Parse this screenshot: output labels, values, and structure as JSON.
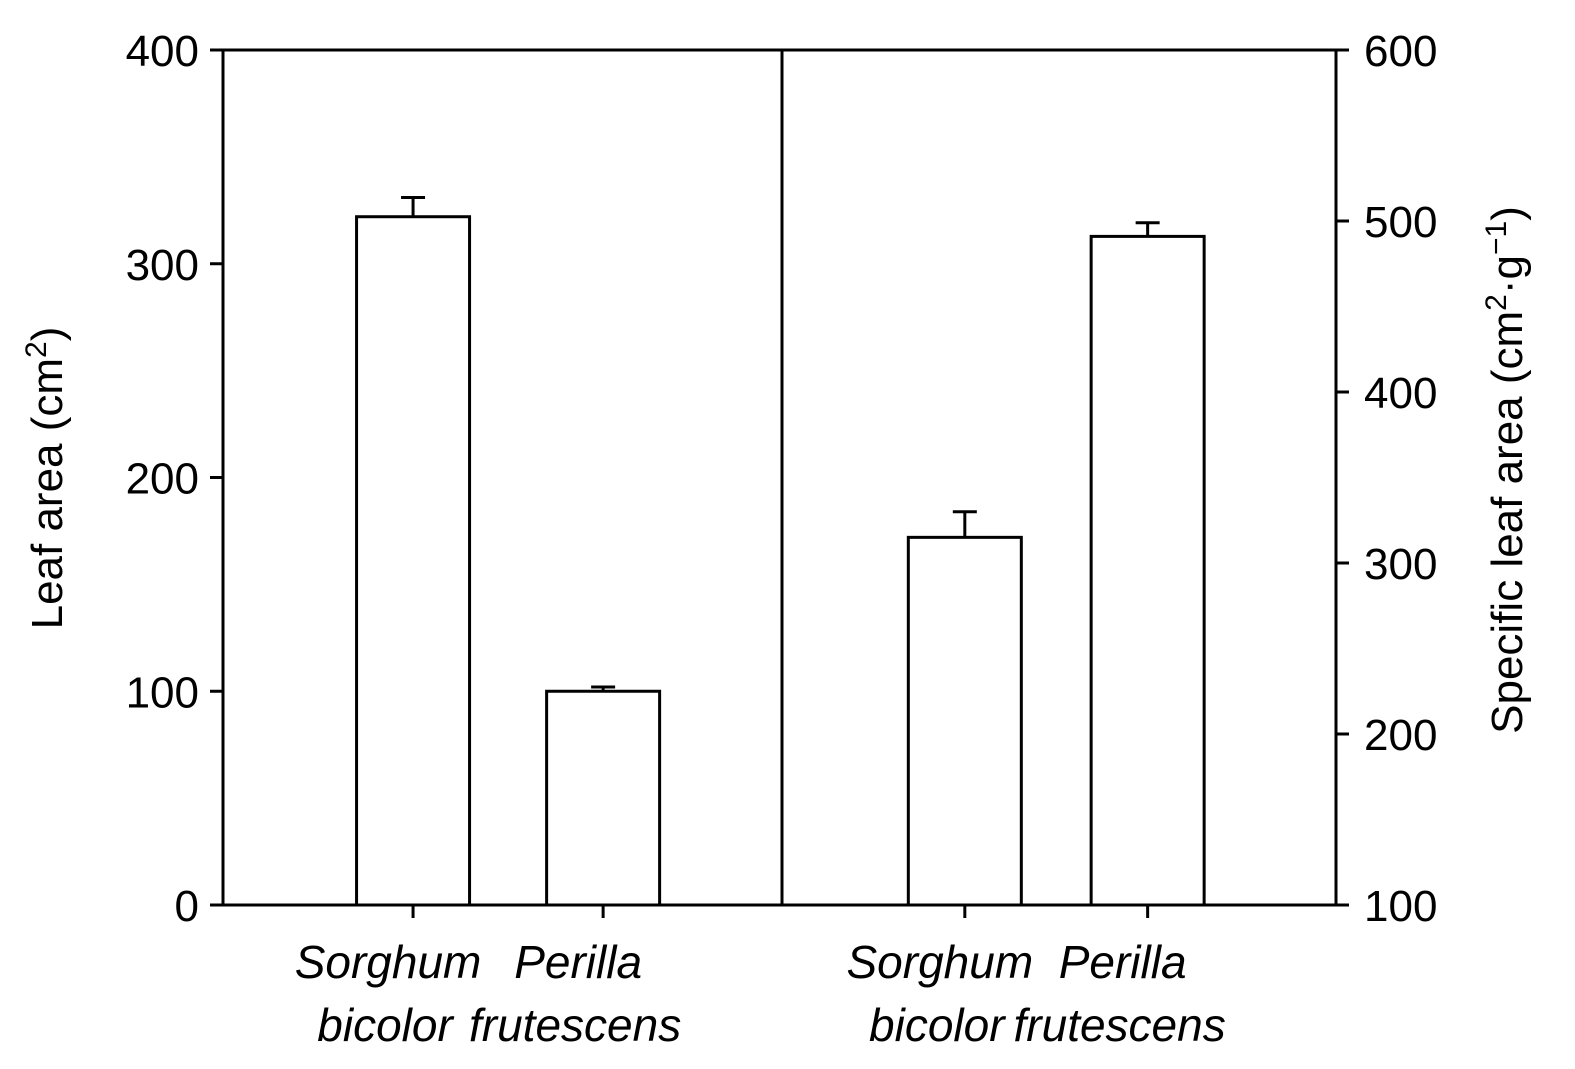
{
  "chart_data": {
    "type": "bar",
    "title": "",
    "left_axis": {
      "label_main": "Leaf area (cm",
      "label_sup": "2",
      "label_end": ")",
      "ylim": [
        0,
        400
      ],
      "ticks": [
        "0",
        "100",
        "200",
        "300",
        "400"
      ]
    },
    "right_axis": {
      "label_main": "Specific leaf area (cm",
      "label_sup1": "2",
      "label_mid": "·g",
      "label_sup2": "−1",
      "label_end": ")",
      "ylim": [
        100,
        600
      ],
      "ticks": [
        "100",
        "200",
        "300",
        "400",
        "500",
        "600"
      ]
    },
    "panels": [
      {
        "axis": "left",
        "categories": [
          {
            "line1": "Sorghum",
            "line2": "bicolor"
          },
          {
            "line1": "Perilla",
            "line2": "frutescens"
          }
        ],
        "values": [
          322,
          100
        ],
        "errors": [
          9,
          2
        ]
      },
      {
        "axis": "right",
        "categories": [
          {
            "line1": "Sorghum",
            "line2": "bicolor"
          },
          {
            "line1": "Perilla",
            "line2": "frutescens"
          }
        ],
        "values": [
          315,
          491
        ],
        "errors": [
          15,
          8
        ]
      }
    ],
    "bar_color": "#ffffff",
    "line_color": "#000000",
    "grid": false,
    "legend": "none"
  }
}
